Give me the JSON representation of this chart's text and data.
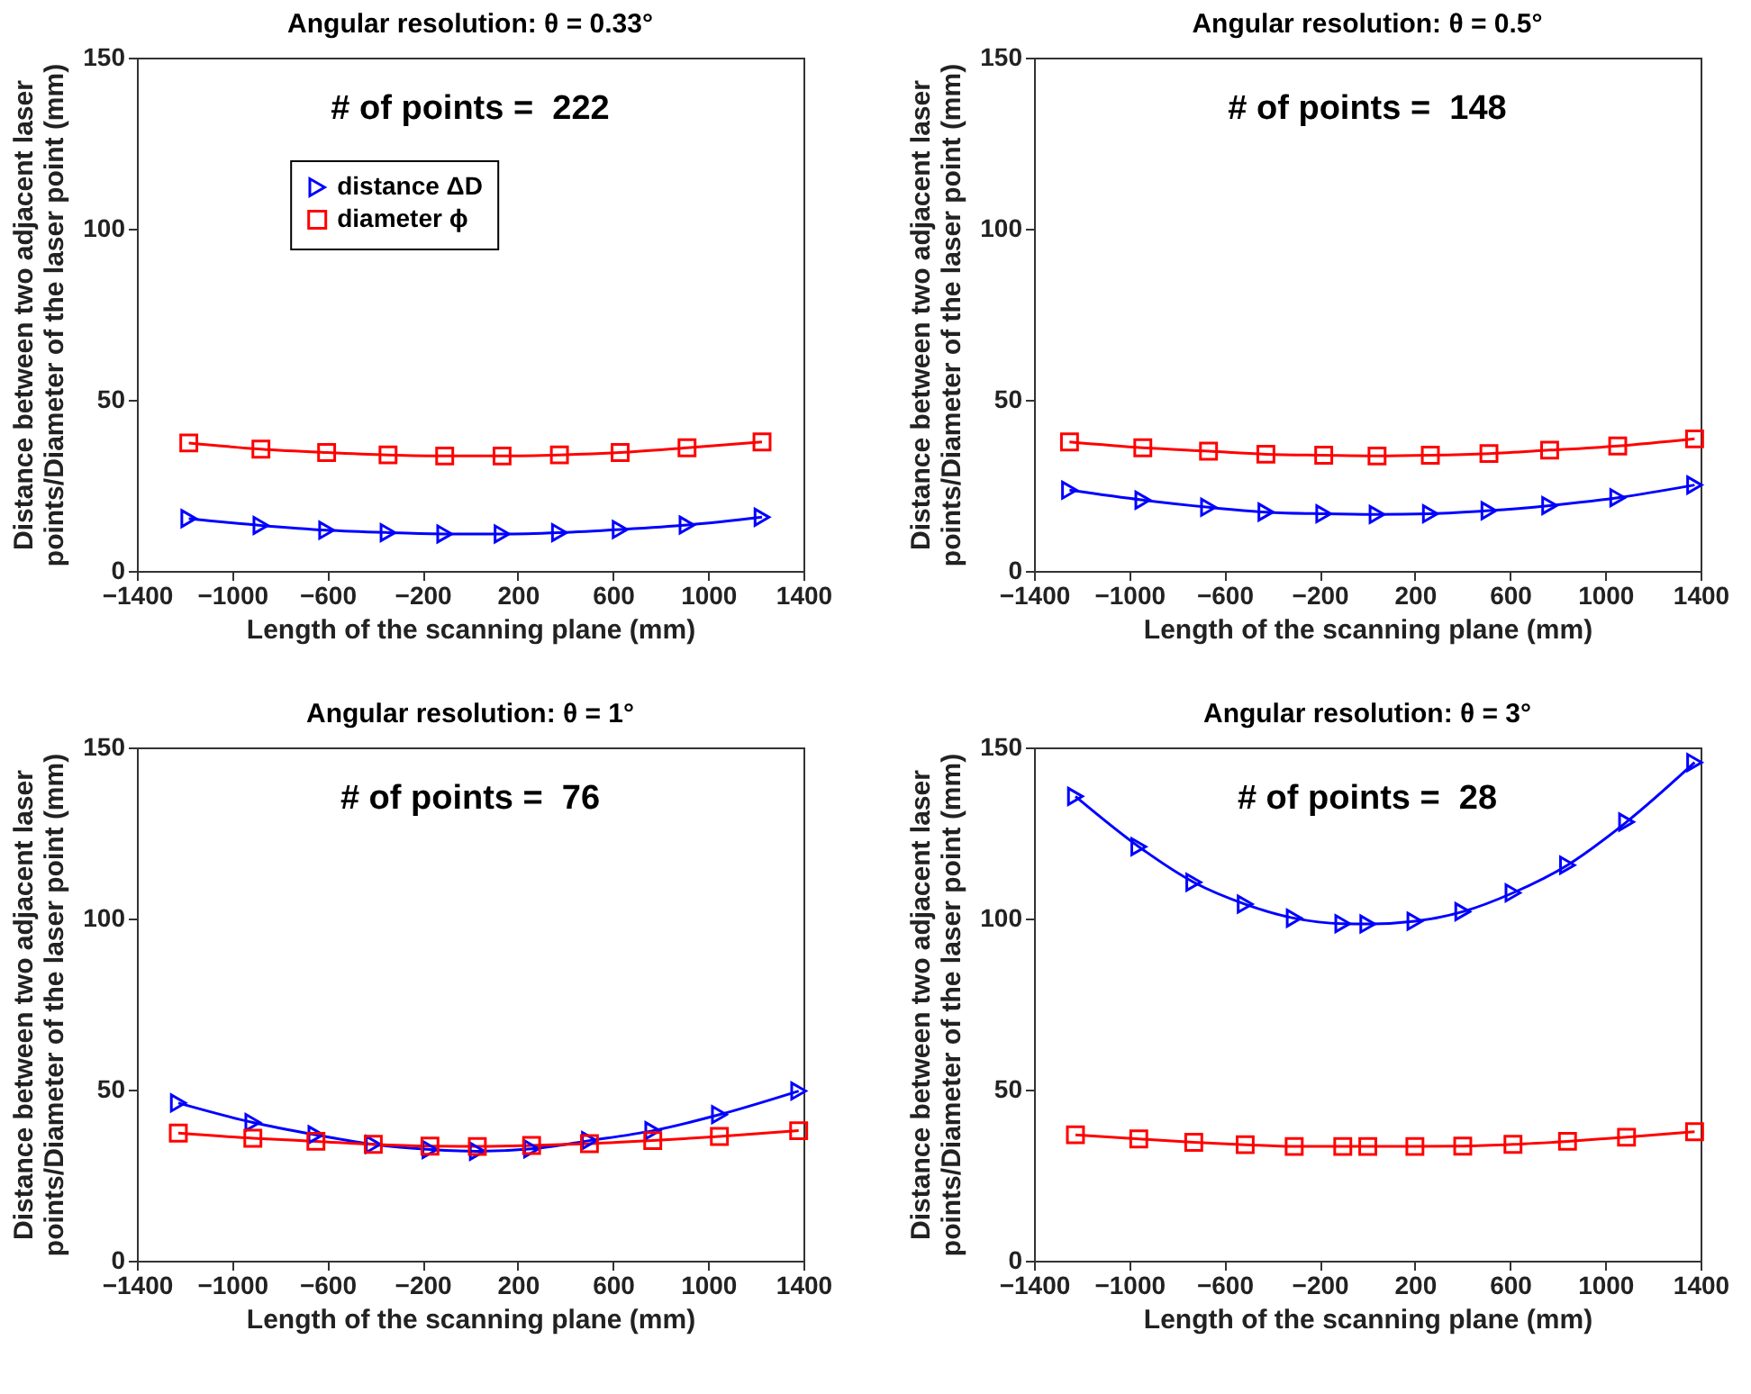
{
  "chart_data": [
    {
      "type": "line",
      "title": "Angular resolution: θ = 0.33°",
      "xlabel": "Length of the scanning plane (mm)",
      "ylabel": "Distance between two adjacent laser points/Diameter of the laser point (mm)",
      "annotations": [
        "# of points =  222"
      ],
      "legend": "top",
      "xlim": [
        -1400,
        1400
      ],
      "ylim": [
        0,
        150
      ],
      "xticks": [
        -1400,
        -1000,
        -600,
        -200,
        200,
        600,
        1000,
        1400
      ],
      "yticks": [
        0,
        50,
        100,
        150
      ],
      "grid": false,
      "x": [
        -1182,
        -879,
        -603,
        -345,
        -107,
        134,
        375,
        630,
        911,
        1226
      ],
      "series": [
        {
          "name": "distance ΔD",
          "color": "#0000ff",
          "marker": "triangle",
          "values": [
            15.3,
            13.3,
            11.9,
            11.2,
            10.8,
            10.8,
            11.2,
            12.1,
            13.4,
            15.7
          ]
        },
        {
          "name": "diameter ϕ",
          "color": "#ff0000",
          "marker": "square",
          "values": [
            37.4,
            35.6,
            34.6,
            33.9,
            33.6,
            33.6,
            33.9,
            34.6,
            36.0,
            37.7
          ]
        }
      ]
    },
    {
      "type": "line",
      "title": "Angular resolution: θ = 0.5°",
      "xlabel": "Length of the scanning plane (mm)",
      "ylabel": "Distance between two adjacent laser points/Diameter of the laser point (mm)",
      "annotations": [
        "# of points =  148"
      ],
      "xlim": [
        -1400,
        1400
      ],
      "ylim": [
        0,
        150
      ],
      "xticks": [
        -1400,
        -1000,
        -600,
        -200,
        200,
        600,
        1000,
        1400
      ],
      "yticks": [
        0,
        50,
        100,
        150
      ],
      "grid": false,
      "x": [
        -1251,
        -943,
        -667,
        -426,
        -183,
        41,
        265,
        511,
        766,
        1052,
        1375
      ],
      "series": [
        {
          "color": "#0000ff",
          "marker": "triangle",
          "values": [
            23.6,
            20.7,
            18.6,
            17.2,
            16.7,
            16.5,
            16.7,
            17.6,
            19.1,
            21.4,
            25.1
          ]
        },
        {
          "color": "#ff0000",
          "marker": "square",
          "values": [
            37.7,
            36.0,
            35.0,
            34.1,
            33.8,
            33.6,
            33.8,
            34.3,
            35.3,
            36.5,
            38.6
          ]
        }
      ]
    },
    {
      "type": "line",
      "title": "Angular resolution: θ = 1°",
      "xlabel": "Length of the scanning plane (mm)",
      "ylabel": "Distance between two adjacent laser points/Diameter of the laser point (mm)",
      "annotations": [
        "# of points =  76"
      ],
      "xlim": [
        -1400,
        1400
      ],
      "ylim": [
        0,
        150
      ],
      "xticks": [
        -1400,
        -1000,
        -600,
        -200,
        200,
        600,
        1000,
        1400
      ],
      "yticks": [
        0,
        50,
        100,
        150
      ],
      "grid": false,
      "x": [
        -1226,
        -913,
        -648,
        -407,
        -169,
        30,
        258,
        501,
        767,
        1047,
        1380
      ],
      "series": [
        {
          "color": "#0000ff",
          "marker": "triangle",
          "values": [
            46.1,
            40.4,
            36.8,
            34.0,
            32.5,
            32.0,
            32.7,
            35.1,
            38.0,
            42.7,
            49.6
          ]
        },
        {
          "color": "#ff0000",
          "marker": "square",
          "values": [
            37.3,
            35.8,
            34.9,
            34.0,
            33.5,
            33.4,
            33.7,
            34.2,
            35.1,
            36.3,
            38.0
          ]
        }
      ]
    },
    {
      "type": "line",
      "title": "Angular resolution: θ = 3°",
      "xlabel": "Length of the scanning plane (mm)",
      "ylabel": "Distance between two adjacent laser points/Diameter of the laser point (mm)",
      "annotations": [
        "# of points =  28"
      ],
      "xlim": [
        -1400,
        1400
      ],
      "ylim": [
        0,
        150
      ],
      "xticks": [
        -1400,
        -1000,
        -600,
        -200,
        200,
        600,
        1000,
        1400
      ],
      "yticks": [
        0,
        50,
        100,
        150
      ],
      "grid": false,
      "x": [
        -1226,
        -960,
        -729,
        -513,
        -307,
        -103,
        2,
        200,
        401,
        612,
        841,
        1089,
        1375
      ],
      "series": [
        {
          "color": "#0000ff",
          "marker": "triangle",
          "values": [
            135.7,
            121.0,
            110.6,
            104.2,
            100.1,
            98.5,
            98.4,
            99.2,
            102.0,
            107.5,
            115.6,
            128.2,
            145.6
          ]
        },
        {
          "color": "#ff0000",
          "marker": "square",
          "values": [
            36.8,
            35.6,
            34.6,
            33.9,
            33.4,
            33.4,
            33.4,
            33.4,
            33.5,
            34.0,
            34.9,
            36.1,
            37.7
          ]
        }
      ]
    }
  ]
}
